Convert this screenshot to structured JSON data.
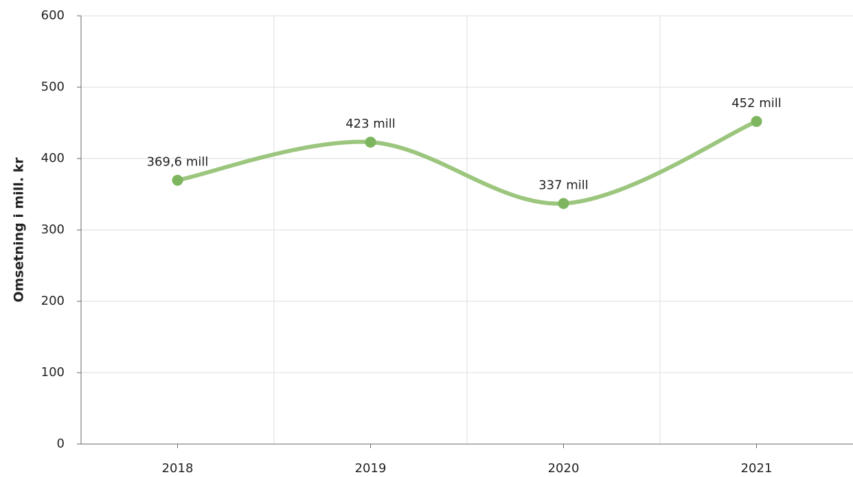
{
  "chart_data": {
    "type": "line",
    "ylabel": "Omsetning i mill. kr",
    "categories": [
      "2018",
      "2019",
      "2020",
      "2021"
    ],
    "values": [
      369.6,
      423,
      337,
      452
    ],
    "value_labels": [
      "369,6 mill",
      "423 mill",
      "337 mill",
      "452 mill"
    ],
    "color": "#9cc67e",
    "marker_color": "#7eb55f",
    "ylim": [
      0,
      600
    ],
    "yticks": [
      0,
      100,
      200,
      300,
      400,
      500,
      600
    ],
    "grid": true
  }
}
